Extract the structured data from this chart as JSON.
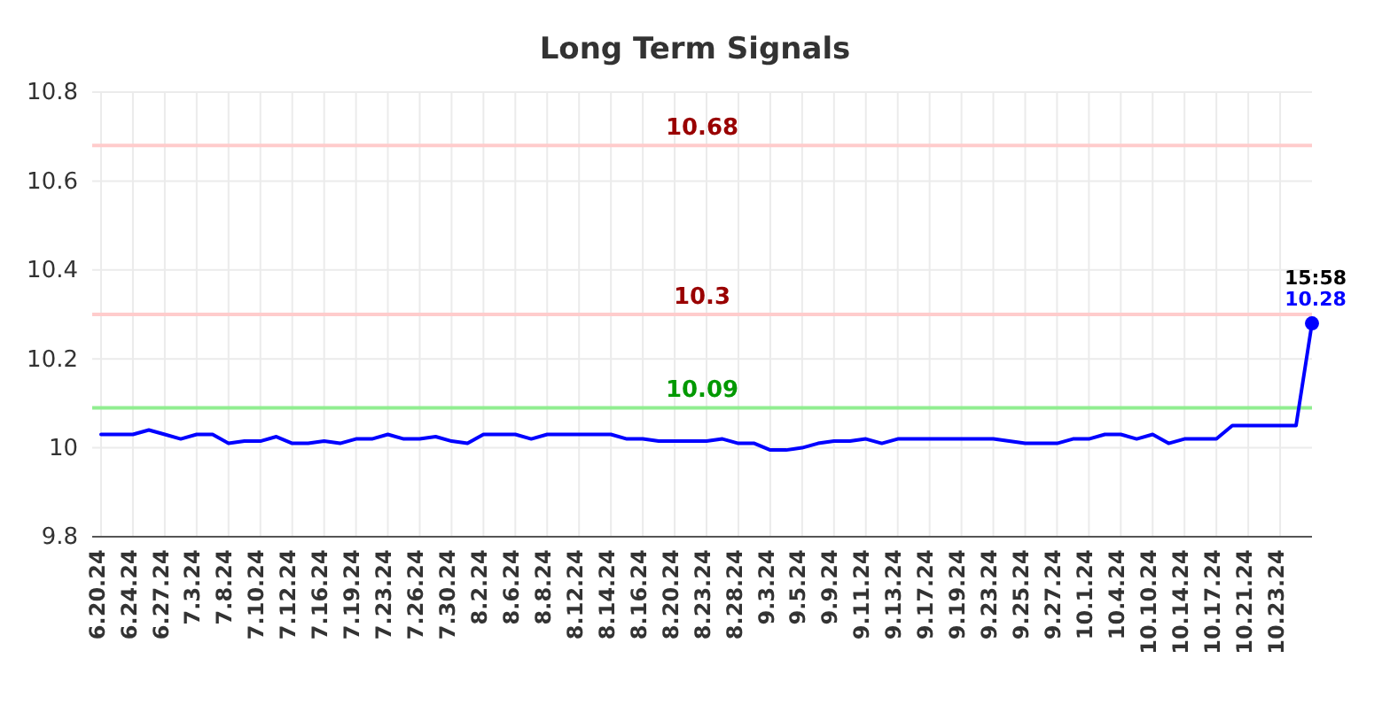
{
  "chart_data": {
    "type": "line",
    "title": "Long Term Signals",
    "categories": [
      "6.20.24",
      null,
      "6.24.24",
      null,
      "6.27.24",
      null,
      "7.3.24",
      null,
      "7.8.24",
      null,
      "7.10.24",
      null,
      "7.12.24",
      null,
      "7.16.24",
      null,
      "7.19.24",
      null,
      "7.23.24",
      null,
      "7.26.24",
      null,
      "7.30.24",
      null,
      "8.2.24",
      null,
      "8.6.24",
      null,
      "8.8.24",
      null,
      "8.12.24",
      null,
      "8.14.24",
      null,
      "8.16.24",
      null,
      "8.20.24",
      null,
      "8.23.24",
      null,
      "8.28.24",
      null,
      "9.3.24",
      null,
      "9.5.24",
      null,
      "9.9.24",
      null,
      "9.11.24",
      null,
      "9.13.24",
      null,
      "9.17.24",
      null,
      "9.19.24",
      null,
      "9.23.24",
      null,
      "9.25.24",
      null,
      "9.27.24",
      null,
      "10.1.24",
      null,
      "10.4.24",
      null,
      "10.10.24",
      null,
      "10.14.24",
      null,
      "10.17.24",
      null,
      "10.21.24",
      null,
      "10.23.24",
      null,
      null
    ],
    "series": [
      {
        "type": "line",
        "color": "#0000ff",
        "marker": "none",
        "values": [
          10.03,
          10.03,
          10.03,
          10.04,
          10.03,
          10.02,
          10.03,
          10.03,
          10.01,
          10.015,
          10.015,
          10.025,
          10.01,
          10.01,
          10.015,
          10.01,
          10.02,
          10.02,
          10.03,
          10.02,
          10.02,
          10.025,
          10.015,
          10.01,
          10.03,
          10.03,
          10.03,
          10.02,
          10.03,
          10.03,
          10.03,
          10.03,
          10.03,
          10.02,
          10.02,
          10.015,
          10.015,
          10.015,
          10.015,
          10.02,
          10.01,
          10.01,
          9.995,
          9.995,
          10.0,
          10.01,
          10.015,
          10.015,
          10.02,
          10.01,
          10.02,
          10.02,
          10.02,
          10.02,
          10.02,
          10.02,
          10.02,
          10.015,
          10.01,
          10.01,
          10.01,
          10.02,
          10.02,
          10.03,
          10.03,
          10.02,
          10.03,
          10.01,
          10.02,
          10.02,
          10.02,
          10.05,
          10.05,
          10.05,
          10.05,
          10.05,
          10.28
        ]
      },
      {
        "type": "scatter",
        "color": "#0000ff",
        "marker": "circle",
        "values": [
          null,
          null,
          null,
          null,
          null,
          null,
          null,
          null,
          null,
          null,
          null,
          null,
          null,
          null,
          null,
          null,
          null,
          null,
          null,
          null,
          null,
          null,
          null,
          null,
          null,
          null,
          null,
          null,
          null,
          null,
          null,
          null,
          null,
          null,
          null,
          null,
          null,
          null,
          null,
          null,
          null,
          null,
          null,
          null,
          null,
          null,
          null,
          null,
          null,
          null,
          null,
          null,
          null,
          null,
          null,
          null,
          null,
          null,
          null,
          null,
          null,
          null,
          null,
          null,
          null,
          null,
          null,
          null,
          null,
          null,
          null,
          null,
          null,
          null,
          null,
          null,
          10.28
        ],
        "value_labels": [
          null,
          null,
          null,
          null,
          null,
          null,
          null,
          null,
          null,
          null,
          null,
          null,
          null,
          null,
          null,
          null,
          null,
          null,
          null,
          null,
          null,
          null,
          null,
          null,
          null,
          null,
          null,
          null,
          null,
          null,
          null,
          null,
          null,
          null,
          null,
          null,
          null,
          null,
          null,
          null,
          null,
          null,
          null,
          null,
          null,
          null,
          null,
          null,
          null,
          null,
          null,
          null,
          null,
          null,
          null,
          null,
          null,
          null,
          null,
          null,
          null,
          null,
          null,
          null,
          null,
          null,
          null,
          null,
          null,
          null,
          null,
          null,
          null,
          null,
          null,
          null,
          "10.28"
        ]
      }
    ],
    "ylim": [
      9.8,
      10.8
    ],
    "yticks": [
      9.8,
      10,
      10.2,
      10.4,
      10.6,
      10.8
    ],
    "grid": true,
    "ref_lines": [
      {
        "axis": "y",
        "value": 10.68,
        "label": "10.68",
        "color": "#ffcccc"
      },
      {
        "axis": "y",
        "value": 10.3,
        "label": "10.3",
        "color": "#ffcccc"
      },
      {
        "axis": "y",
        "value": 10.09,
        "label": "10.09",
        "color": "#90ee90"
      }
    ],
    "annotations": [
      {
        "text": "15:58",
        "y": 10.28
      }
    ]
  }
}
